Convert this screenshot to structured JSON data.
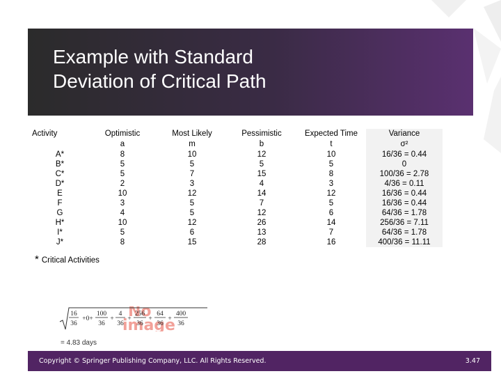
{
  "slide": {
    "title_line1": "Example with Standard",
    "title_line2": "Deviation of Critical Path"
  },
  "table": {
    "headers": [
      {
        "l1": "Activity",
        "l2": ""
      },
      {
        "l1": "Optimistic",
        "l2": "a"
      },
      {
        "l1": "Most Likely",
        "l2": "m"
      },
      {
        "l1": "Pessimistic",
        "l2": "b"
      },
      {
        "l1": "Expected Time",
        "l2": "t"
      },
      {
        "l1": "Variance",
        "l2": "σ²"
      }
    ],
    "rows": [
      [
        "A*",
        "8",
        "10",
        "12",
        "10",
        "16/36 = 0.44"
      ],
      [
        "B*",
        "5",
        "5",
        "5",
        "5",
        "0"
      ],
      [
        "C*",
        "5",
        "7",
        "15",
        "8",
        "100/36 = 2.78"
      ],
      [
        "D*",
        "2",
        "3",
        "4",
        "3",
        "4/36 = 0.11"
      ],
      [
        "E",
        "10",
        "12",
        "14",
        "12",
        "16/36 = 0.44"
      ],
      [
        "F",
        "3",
        "5",
        "7",
        "5",
        "16/36 = 0.44"
      ],
      [
        "G",
        "4",
        "5",
        "12",
        "6",
        "64/36 = 1.78"
      ],
      [
        "H*",
        "10",
        "12",
        "26",
        "14",
        "256/36 = 7.11"
      ],
      [
        "I*",
        "5",
        "6",
        "13",
        "7",
        "64/36 = 1.78"
      ],
      [
        "J*",
        "8",
        "15",
        "28",
        "16",
        "400/36 = 11.11"
      ]
    ]
  },
  "note": {
    "asterisk": "*",
    "text": "Critical Activities"
  },
  "formula": {
    "n1": "16",
    "d1": "36",
    "plus0": "+0+",
    "n2": "100",
    "d2": "36",
    "n3": "4",
    "d3": "36",
    "n4": "256",
    "d4": "36",
    "n5": "64",
    "d5": "36",
    "n6": "400",
    "d6": "36",
    "plus": "+",
    "result": "= 4.83 days"
  },
  "placeholder": {
    "line1": "No",
    "line2": "image"
  },
  "footer": {
    "copyright": "Copyright © Springer Publishing Company, LLC. All Rights Reserved.",
    "page": "3.47"
  },
  "colors": {
    "footer_bg": "#512463",
    "title_band": "#3a2b45",
    "accent": "#6a2c80"
  }
}
